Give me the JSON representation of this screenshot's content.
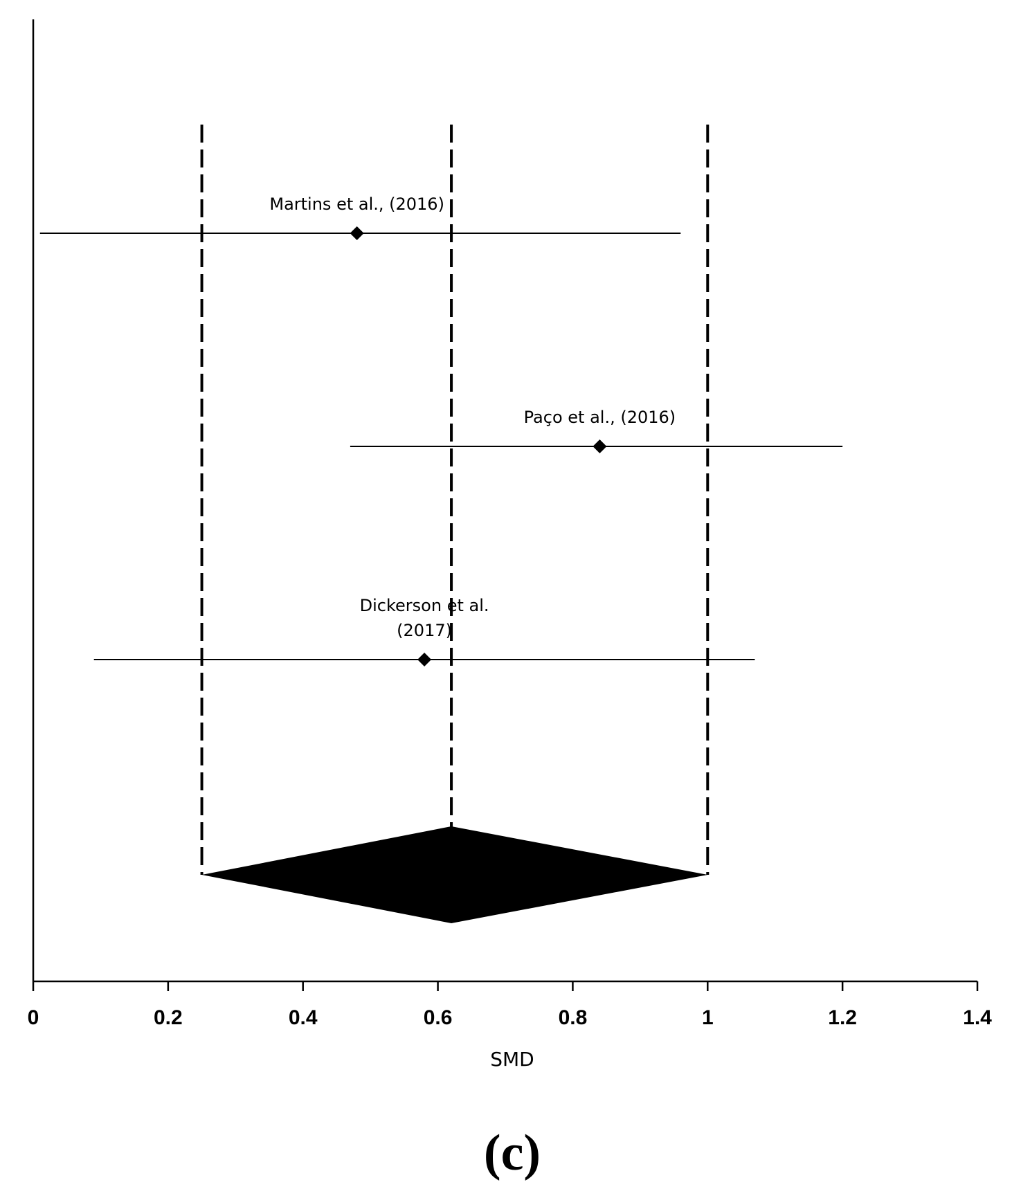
{
  "chart_data": {
    "type": "scatter",
    "subtype": "forest-plot",
    "xlabel": "SMD",
    "ylabel": "",
    "xlim": [
      0,
      1.4
    ],
    "x_ticks": [
      0,
      0.2,
      0.4,
      0.6,
      0.8,
      1,
      1.2,
      1.4
    ],
    "x_tick_labels": [
      "0",
      "0.2",
      "0.4",
      "0.6",
      "0.8",
      "1",
      "1.2",
      "1.4"
    ],
    "grid": false,
    "legend": "none",
    "studies": [
      {
        "label": [
          "Martins et al., (2016)"
        ],
        "smd": 0.48,
        "ci_low": 0.01,
        "ci_high": 0.96
      },
      {
        "label": [
          "Paço et al., (2016)"
        ],
        "smd": 0.84,
        "ci_low": 0.47,
        "ci_high": 1.2
      },
      {
        "label": [
          "Dickerson et al.",
          "(2017)"
        ],
        "smd": 0.58,
        "ci_low": 0.09,
        "ci_high": 1.07
      }
    ],
    "pooled": {
      "smd": 0.62,
      "ci_low": 0.25,
      "ci_high": 1.0
    },
    "reference_lines": [
      0.25,
      0.62,
      1.0
    ],
    "colors": {
      "ink": "#000000",
      "background": "#ffffff"
    }
  },
  "panel_label": "(c)"
}
